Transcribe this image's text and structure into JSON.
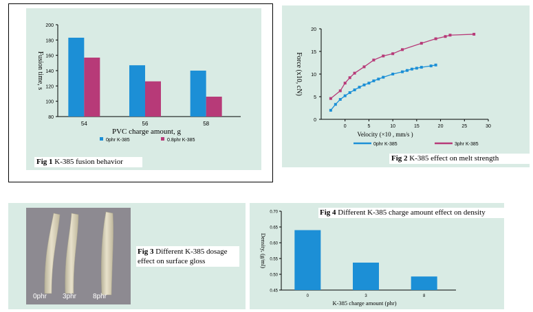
{
  "fig1": {
    "caption_num": "Fig 1",
    "caption_text": " K-385 fusion behavior",
    "chart_data": {
      "type": "bar",
      "categories": [
        "54",
        "56",
        "58"
      ],
      "series": [
        {
          "name": "0phr  K-385",
          "values": [
            183,
            147,
            140
          ],
          "color": "#1c8fd6"
        },
        {
          "name": "0.8phr  K-385",
          "values": [
            157,
            126,
            106
          ],
          "color": "#b73a78"
        }
      ],
      "ylabel": "Fusion time, s",
      "xlabel": "PVC charge amount, g",
      "ylim": [
        80,
        200
      ],
      "yticks": [
        80,
        100,
        120,
        140,
        160,
        180,
        200
      ]
    }
  },
  "fig2": {
    "caption_num": "Fig 2",
    "caption_text": " K-385 effect on melt strength",
    "chart_data": {
      "type": "line",
      "series": [
        {
          "name": "0phr  K-385",
          "color": "#1c8fd6",
          "x": [
            -3,
            -2,
            -1,
            0,
            1,
            2,
            3,
            4,
            5,
            6,
            7,
            8,
            10,
            12,
            13,
            14,
            15,
            16,
            18,
            19
          ],
          "y": [
            2,
            3.3,
            4.4,
            5.2,
            5.9,
            6.5,
            7.1,
            7.6,
            8.0,
            8.5,
            8.9,
            9.3,
            10.0,
            10.5,
            10.8,
            11.1,
            11.3,
            11.5,
            11.8,
            12.0
          ]
        },
        {
          "name": "3phr  K-385",
          "color": "#b73a78",
          "x": [
            -3,
            -1,
            0,
            1,
            2,
            4,
            6,
            8,
            10,
            12,
            16,
            19,
            21,
            22,
            27
          ],
          "y": [
            4.6,
            6.3,
            8.0,
            9.2,
            10.2,
            11.6,
            13.1,
            14.0,
            14.5,
            15.4,
            16.8,
            17.8,
            18.3,
            18.6,
            18.8
          ]
        }
      ],
      "ylabel": "Force (x10, cN)",
      "xlabel": "Velocity  (×10 , mm/s )",
      "xlim": [
        -5,
        30
      ],
      "ylim": [
        0,
        20
      ],
      "xticks": [
        0,
        5,
        10,
        15,
        20,
        25,
        30
      ],
      "yticks": [
        0,
        5,
        10,
        15,
        20
      ]
    }
  },
  "fig3": {
    "caption_num": "Fig 3",
    "caption_text": " Different K-385 dosage effect on surface gloss",
    "labels": [
      "0phr",
      "3phr",
      "8phr"
    ]
  },
  "fig4": {
    "caption_num": "Fig 4",
    "caption_text": " Different K-385 charge amount effect on density",
    "chart_data": {
      "type": "bar",
      "categories": [
        "0",
        "3",
        "8"
      ],
      "values": [
        0.64,
        0.537,
        0.493
      ],
      "color": "#1c8fd6",
      "ylabel": "Density, (g/ml)",
      "xlabel": "K-385 charge amount (phr)",
      "ylim": [
        0.45,
        0.7
      ],
      "yticks": [
        0.45,
        0.5,
        0.55,
        0.6,
        0.65,
        0.7
      ]
    }
  }
}
